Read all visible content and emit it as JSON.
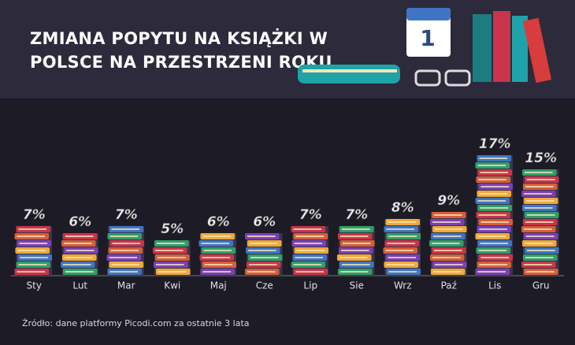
{
  "chart_data": {
    "type": "bar",
    "title": "ZMIANA POPYTU NA KSIĄŻKI W POLSCE NA PRZESTRZENI ROKU",
    "calendar_label": "1",
    "categories": [
      "Sty",
      "Lut",
      "Mar",
      "Kwi",
      "Maj",
      "Cze",
      "Lip",
      "Sie",
      "Wrz",
      "Paź",
      "Lis",
      "Gru"
    ],
    "values": [
      7,
      6,
      7,
      5,
      6,
      6,
      7,
      7,
      8,
      9,
      17,
      15
    ],
    "value_labels": [
      "7%",
      "6%",
      "7%",
      "5%",
      "6%",
      "6%",
      "7%",
      "7%",
      "8%",
      "9%",
      "17%",
      "15%"
    ],
    "ylim": [
      0,
      18
    ],
    "book_colors": [
      "#c9344a",
      "#2f9e6b",
      "#3f74c4",
      "#f0a83a",
      "#7b3fb8",
      "#d85c3a"
    ],
    "source": "Źródło: dane platformy Picodi.com za ostatnie 3 lata"
  }
}
